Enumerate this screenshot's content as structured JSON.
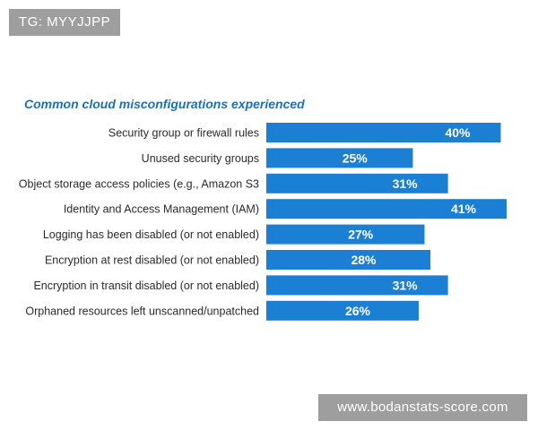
{
  "watermark_top": "TG: MYYJJPP",
  "watermark_bottom": "www.bodanstats-score.com",
  "colors": {
    "bar": "#1b7fd4",
    "title": "#1f6fb6",
    "watermark_bg": "#9e9e9e"
  },
  "chart_data": {
    "type": "bar",
    "orientation": "horizontal",
    "title": "Common cloud misconfigurations experienced",
    "categories": [
      "Security group or firewall rules",
      "Unused security groups",
      "Object storage access policies (e.g., Amazon S3",
      "Identity and Access Management (IAM)",
      "Logging has been disabled (or not enabled)",
      "Encryption at rest disabled (or not enabled)",
      "Encryption in transit disabled (or not enabled)",
      "Orphaned resources left unscanned/unpatched"
    ],
    "values": [
      40,
      25,
      31,
      41,
      27,
      28,
      31,
      26
    ],
    "value_labels": [
      "40%",
      "25%",
      "31%",
      "41%",
      "27%",
      "28%",
      "31%",
      "26%"
    ],
    "xlim": [
      0,
      41
    ],
    "grid": false,
    "legend": "none"
  }
}
